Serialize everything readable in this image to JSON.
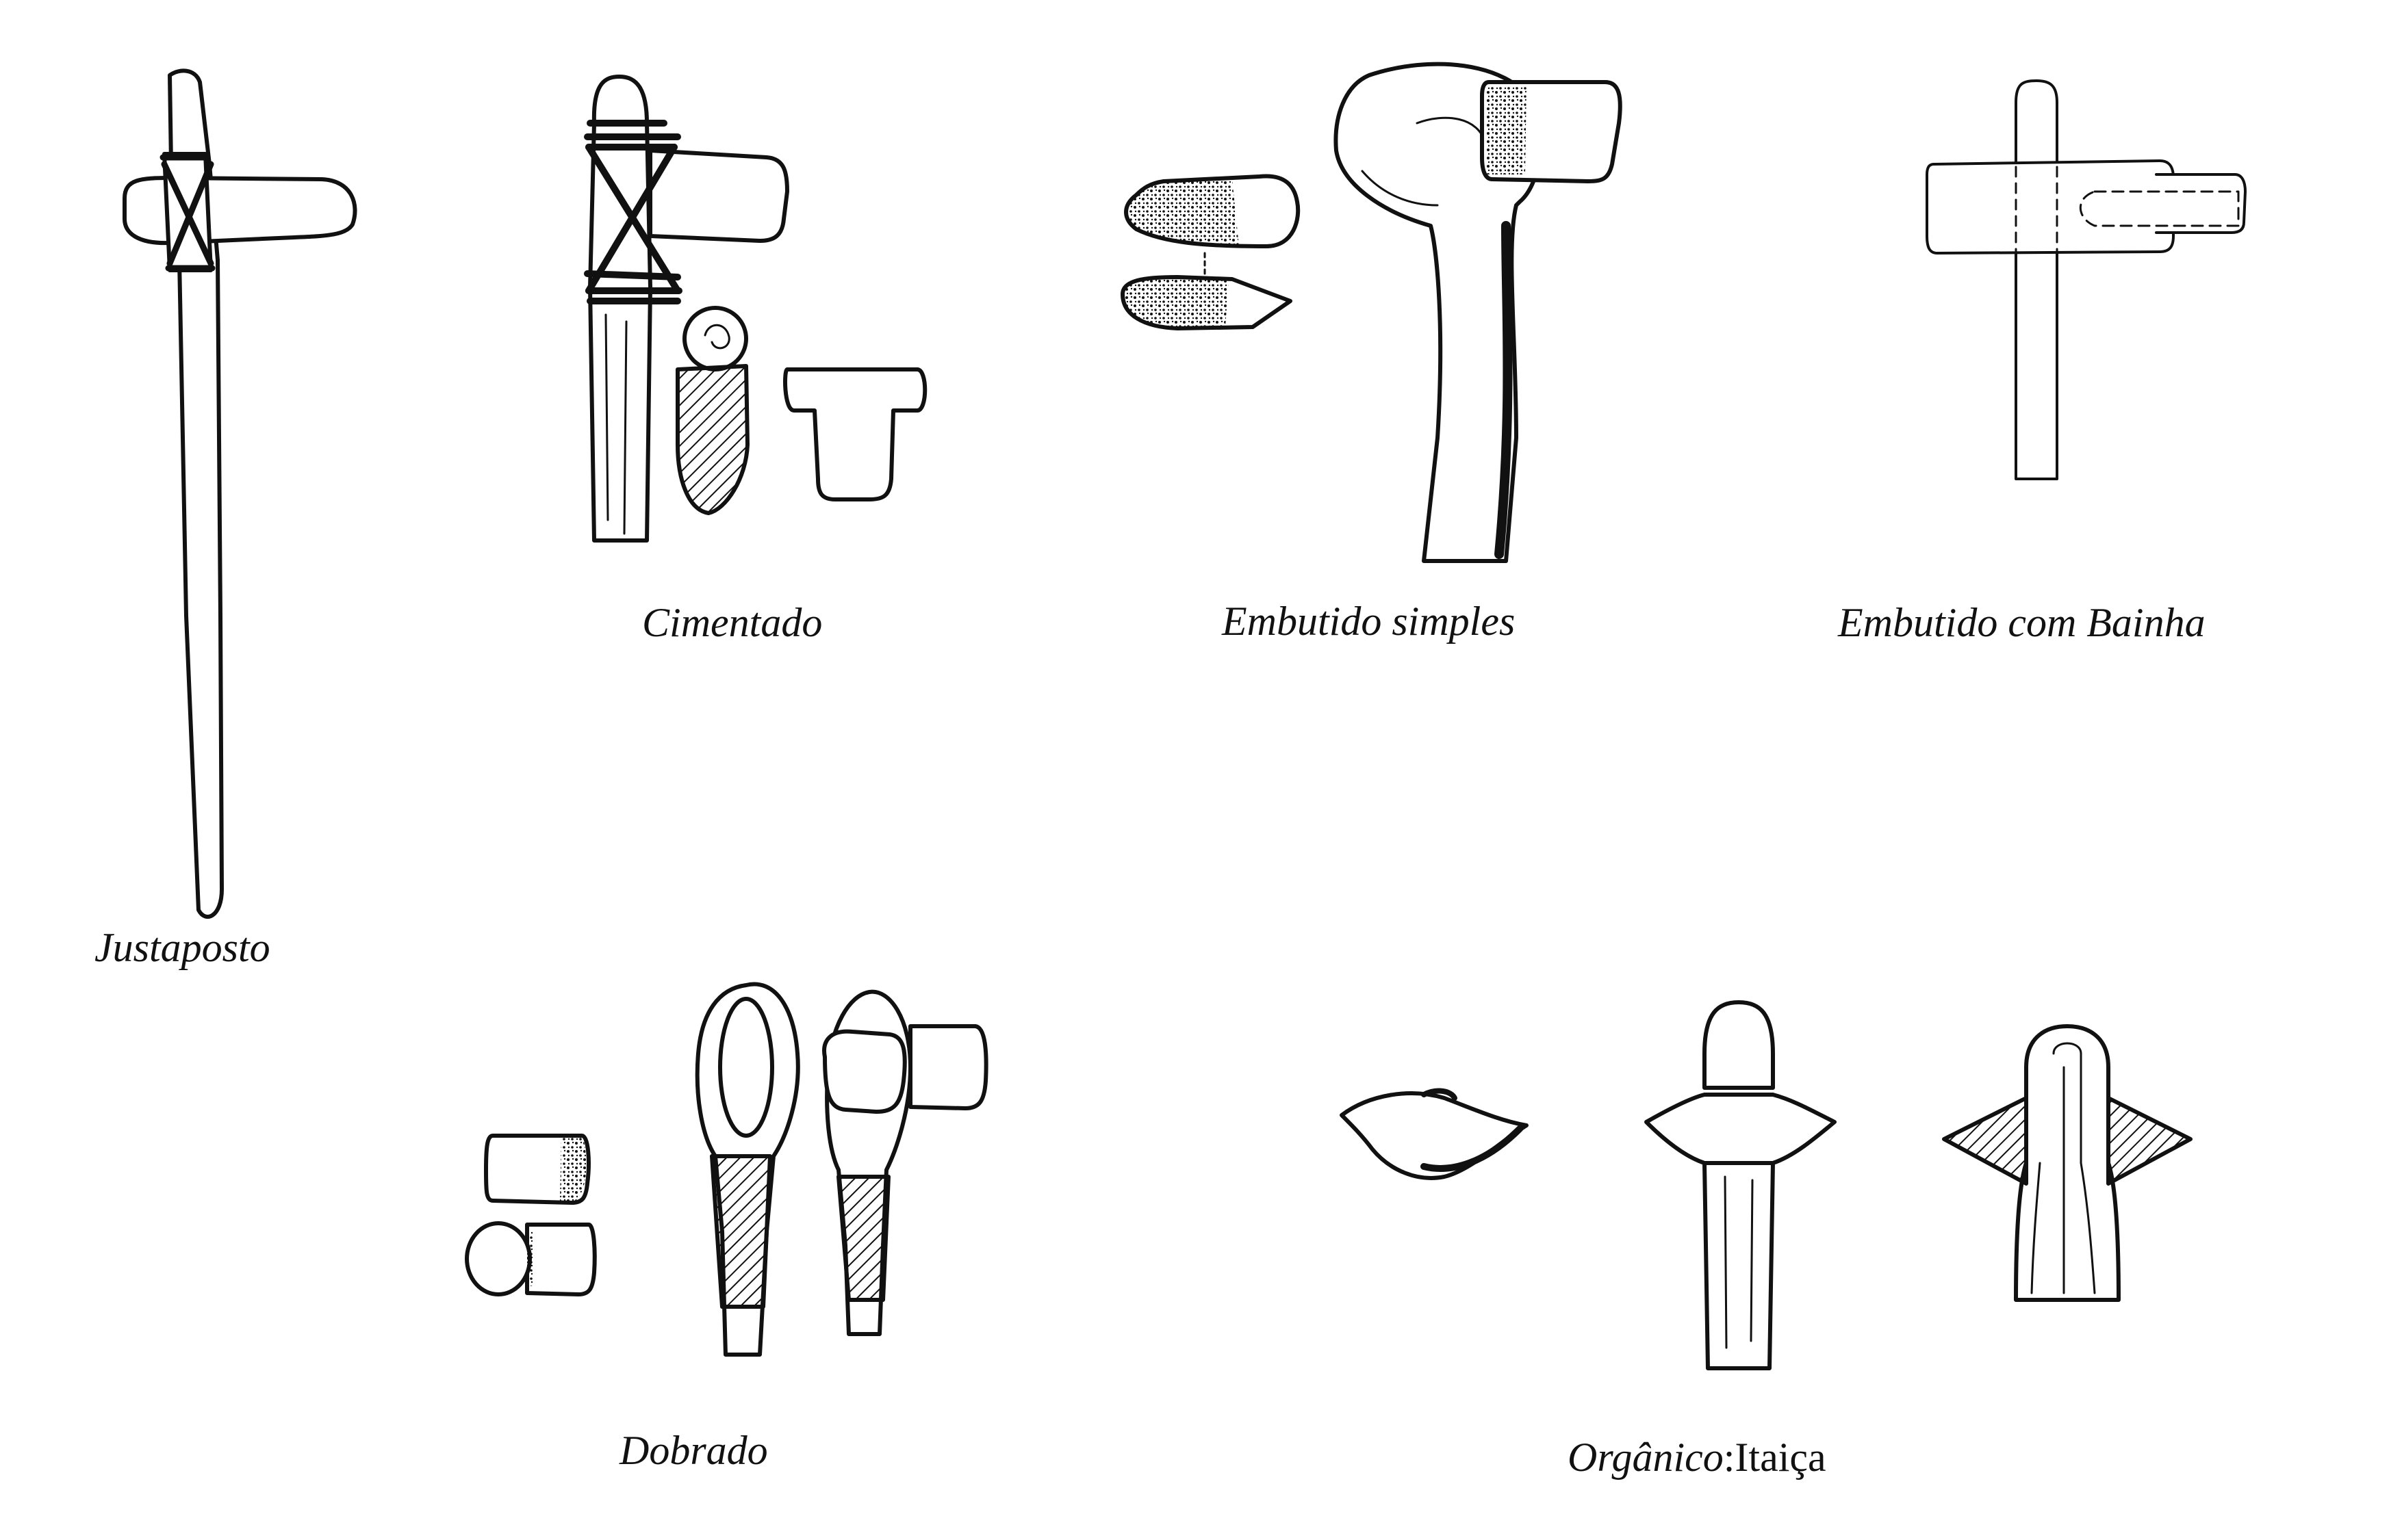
{
  "figure": {
    "colors": {
      "ink": "#111111",
      "paper": "#ffffff"
    },
    "captions": {
      "justaposto": "Justaposto",
      "cimentado": "Cimentado",
      "embutido_simples": "Embutido simples",
      "embutido_bainha": "Embutido com Bainha",
      "dobrado": "Dobrado",
      "organico_italic": "Orgânico",
      "organico_upright": ":Itaiça"
    }
  }
}
